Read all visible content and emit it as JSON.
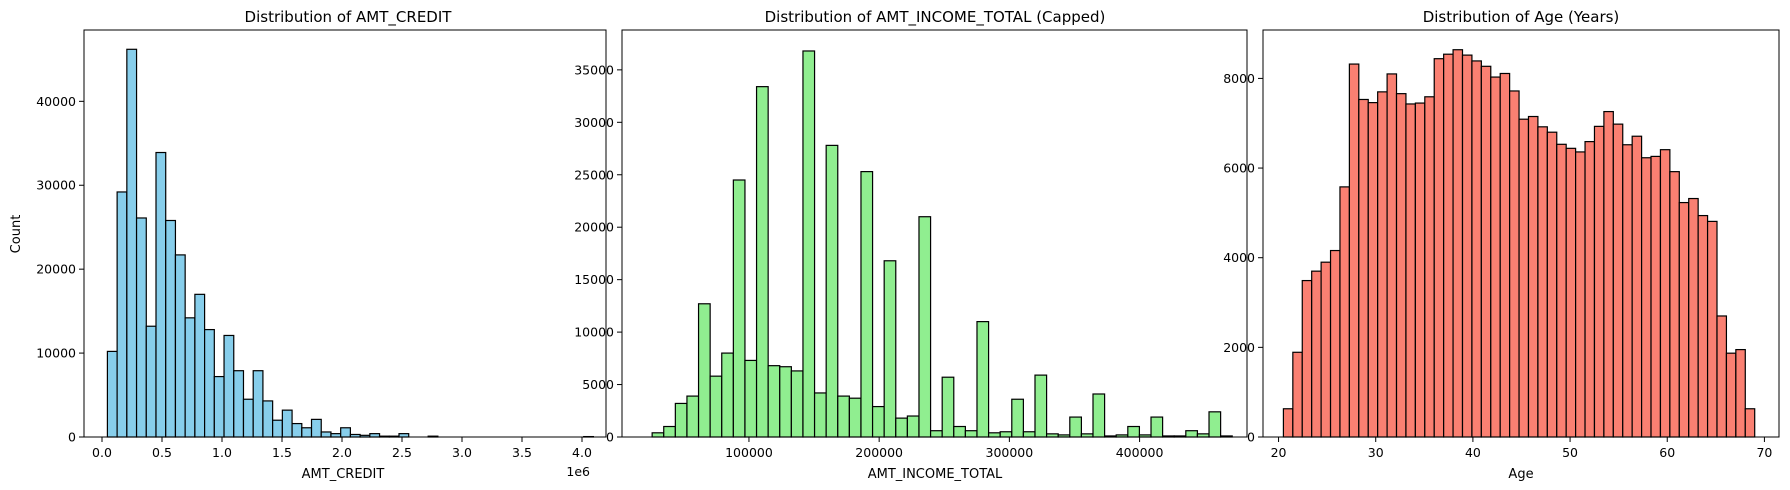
{
  "chart_data": [
    {
      "type": "bar",
      "title": "Distribution of AMT_CREDIT",
      "xlabel": "AMT_CREDIT",
      "ylabel": "Count",
      "x_offset_label": "1e6",
      "color": "#87ceeb",
      "edge_color": "#000000",
      "xlim": [
        -0.15,
        4.2
      ],
      "ylim": [
        0,
        48500
      ],
      "bin_start": 0.045,
      "bin_width": 0.081,
      "values": [
        10200,
        29200,
        46200,
        26100,
        13200,
        33900,
        25800,
        21700,
        14200,
        17000,
        12800,
        7200,
        12100,
        7900,
        4500,
        7900,
        4300,
        2000,
        3200,
        1600,
        1100,
        2100,
        600,
        400,
        1100,
        300,
        200,
        400,
        100,
        100,
        400,
        0,
        0,
        100,
        0,
        0,
        0,
        0,
        0,
        0,
        0,
        0,
        0,
        0,
        0,
        0,
        0,
        0,
        0,
        50
      ],
      "x_ticks": [
        0.0,
        0.5,
        1.0,
        1.5,
        2.0,
        2.5,
        3.0,
        3.5,
        4.0
      ],
      "x_tick_labels": [
        "0.0",
        "0.5",
        "1.0",
        "1.5",
        "2.0",
        "2.5",
        "3.0",
        "3.5",
        "4.0"
      ],
      "y_ticks": [
        0,
        10000,
        20000,
        30000,
        40000
      ],
      "y_tick_labels": [
        "0",
        "10000",
        "20000",
        "30000",
        "40000"
      ]
    },
    {
      "type": "bar",
      "title": "Distribution of AMT_INCOME_TOTAL (Capped)",
      "xlabel": "AMT_INCOME_TOTAL",
      "ylabel": "",
      "color": "#90ee90",
      "edge_color": "#000000",
      "xlim": [
        2500,
        482500
      ],
      "ylim": [
        0,
        38800
      ],
      "bin_start": 25650,
      "bin_width": 8910,
      "values": [
        400,
        1000,
        3200,
        3900,
        12700,
        5800,
        8000,
        24500,
        7300,
        33400,
        6800,
        6700,
        6300,
        36800,
        4200,
        27800,
        3900,
        3700,
        25300,
        2900,
        16800,
        1800,
        2000,
        21000,
        600,
        5700,
        1000,
        600,
        11000,
        400,
        500,
        3600,
        500,
        5900,
        300,
        200,
        1900,
        300,
        4100,
        100,
        200,
        1000,
        200,
        1900,
        100,
        100,
        600,
        300,
        2400,
        100
      ],
      "x_ticks": [
        100000,
        200000,
        300000,
        400000
      ],
      "x_tick_labels": [
        "100000",
        "200000",
        "300000",
        "400000"
      ],
      "y_ticks": [
        0,
        5000,
        10000,
        15000,
        20000,
        25000,
        30000,
        35000
      ],
      "y_tick_labels": [
        "0",
        "5000",
        "10000",
        "15000",
        "20000",
        "25000",
        "30000",
        "35000"
      ]
    },
    {
      "type": "bar",
      "title": "Distribution of Age (Years)",
      "xlabel": "Age",
      "ylabel": "",
      "color": "#fa8072",
      "edge_color": "#000000",
      "xlim": [
        18.4,
        71.5
      ],
      "ylim": [
        0,
        9080
      ],
      "bin_start": 20.5,
      "bin_width": 0.97,
      "values": [
        630,
        1890,
        3490,
        3700,
        3900,
        4160,
        5580,
        8320,
        7530,
        7460,
        7700,
        8100,
        7660,
        7430,
        7450,
        7590,
        8440,
        8540,
        8640,
        8520,
        8390,
        8270,
        8030,
        8110,
        7720,
        7090,
        7150,
        6920,
        6800,
        6530,
        6440,
        6360,
        6590,
        6930,
        7260,
        6980,
        6520,
        6710,
        6230,
        6260,
        6410,
        5920,
        5230,
        5320,
        4940,
        4810,
        2700,
        1870,
        1950,
        630
      ],
      "x_ticks": [
        20,
        30,
        40,
        50,
        60,
        70
      ],
      "x_tick_labels": [
        "20",
        "30",
        "40",
        "50",
        "60",
        "70"
      ],
      "y_ticks": [
        0,
        2000,
        4000,
        6000,
        8000
      ],
      "y_tick_labels": [
        "0",
        "2000",
        "4000",
        "6000",
        "8000"
      ]
    }
  ]
}
